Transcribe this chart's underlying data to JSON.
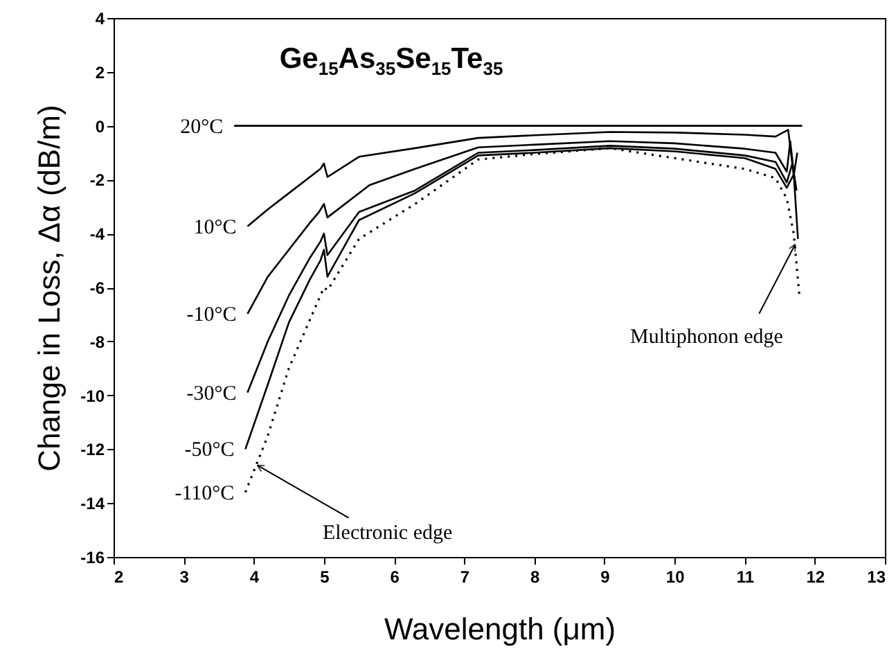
{
  "chart_data": {
    "type": "line",
    "title": "Ge$_{15}$As$_{35}$Se$_{15}$Te$_{35}$",
    "xlabel": "Wavelength (μm)",
    "ylabel": "Change in Loss, Δα (dB/m)",
    "xlim": [
      2,
      13
    ],
    "xticks": [
      2,
      3,
      4,
      5,
      6,
      7,
      8,
      9,
      10,
      11,
      12,
      13
    ],
    "ylim": [
      -16,
      4
    ],
    "yticks": [
      -16,
      -14,
      -12,
      -10,
      -8,
      -6,
      -4,
      -2,
      0,
      2,
      4
    ],
    "grid": false,
    "marker": "none",
    "series": [
      {
        "name": "20°C",
        "color": "#000000",
        "line_style": "solid",
        "x": [
          3.72,
          11.82
        ],
        "values": [
          0,
          0
        ]
      },
      {
        "name": "10°C",
        "color": "#000000",
        "line_style": "solid",
        "x": [
          3.91,
          4.2,
          4.5,
          4.8,
          4.95,
          5.0,
          5.05,
          5.5,
          6.3,
          7.2,
          8,
          9.08,
          10,
          11,
          11.44,
          11.62,
          11.7,
          11.75
        ],
        "values": [
          -3.73,
          -3.1,
          -2.5,
          -1.9,
          -1.6,
          -1.4,
          -1.9,
          -1.15,
          -0.83,
          -0.45,
          -0.35,
          -0.23,
          -0.25,
          -0.33,
          -0.4,
          -0.15,
          -1.85,
          -1.0
        ]
      },
      {
        "name": "-10°C",
        "color": "#000000",
        "line_style": "solid",
        "x": [
          3.91,
          4.2,
          4.5,
          4.8,
          4.93,
          5.0,
          5.05,
          5.65,
          6.3,
          7.2,
          8,
          9.08,
          10,
          11,
          11.44,
          11.6,
          11.65,
          11.72
        ],
        "values": [
          -6.98,
          -5.6,
          -4.6,
          -3.6,
          -3.2,
          -2.9,
          -3.4,
          -2.2,
          -1.6,
          -0.8,
          -0.7,
          -0.57,
          -0.65,
          -0.85,
          -1.0,
          -1.7,
          -0.57,
          -2.2
        ]
      },
      {
        "name": "-30°C",
        "color": "#000000",
        "line_style": "solid",
        "x": [
          3.91,
          4.2,
          4.5,
          4.8,
          4.95,
          5.0,
          5.05,
          5.5,
          6.3,
          7.2,
          8,
          9.08,
          10,
          11,
          11.44,
          11.6,
          11.68,
          11.74
        ],
        "values": [
          -9.9,
          -8.0,
          -6.3,
          -4.9,
          -4.3,
          -4.0,
          -4.8,
          -3.2,
          -2.4,
          -1.0,
          -0.9,
          -0.74,
          -0.85,
          -1.1,
          -1.34,
          -2.1,
          -1.4,
          -2.4
        ]
      },
      {
        "name": "-50°C",
        "color": "#000000",
        "line_style": "solid",
        "x": [
          3.88,
          4.2,
          4.5,
          4.8,
          4.95,
          5.0,
          5.05,
          5.5,
          6.3,
          7.2,
          8,
          9.08,
          10,
          11,
          11.44,
          11.6,
          11.7,
          11.76
        ],
        "values": [
          -12.0,
          -9.6,
          -7.3,
          -5.7,
          -5.0,
          -4.6,
          -5.6,
          -3.5,
          -2.5,
          -1.1,
          -1.0,
          -0.83,
          -0.95,
          -1.2,
          -1.6,
          -2.3,
          -1.8,
          -4.2
        ]
      },
      {
        "name": "-110°C",
        "color": "#000000",
        "line_style": "dotted",
        "x": [
          3.88,
          4.2,
          4.5,
          4.8,
          5.0,
          5.05,
          5.1,
          5.5,
          6.3,
          7.2,
          8,
          9.08,
          10,
          11,
          11.44,
          11.6,
          11.7,
          11.78
        ],
        "values": [
          -13.6,
          -11.5,
          -9.0,
          -7.2,
          -6.0,
          -6.1,
          -5.9,
          -4.2,
          -2.9,
          -1.25,
          -1.05,
          -0.83,
          -1.2,
          -1.6,
          -1.94,
          -2.7,
          -4.0,
          -6.3
        ]
      }
    ],
    "annotations": [
      {
        "text": "Electronic edge",
        "x": 4.05,
        "y": -12.6
      },
      {
        "text": "Multiphonon edge",
        "x": 11.72,
        "y": -4.4
      }
    ]
  }
}
